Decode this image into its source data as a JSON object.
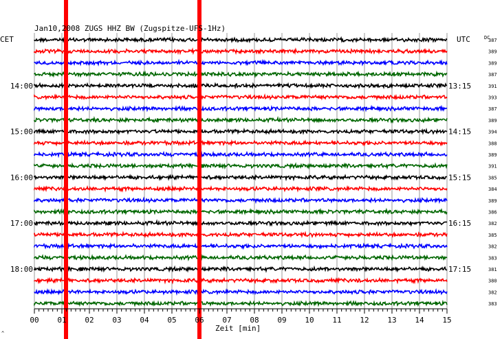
{
  "chart_data": {
    "type": "line",
    "title": "Jan10,2008   ZUGS HHZ BW (Zugspitze-UFS-1Hz)",
    "left_axis_title": "CET",
    "right_axis_title": "UTC",
    "dc_label": "DC",
    "xlabel": "Zeit [min]",
    "xlim": [
      0,
      15
    ],
    "x_tick_labels": [
      "00",
      "01",
      "02",
      "03",
      "04",
      "05",
      "06",
      "07",
      "08",
      "09",
      "10",
      "11",
      "12",
      "13",
      "14",
      "15"
    ],
    "trace_colors": [
      "#000000",
      "#ff0000",
      "#0000ff",
      "#006600"
    ],
    "highlight_color": "#ff0000",
    "grid": "vertical-minute-lines",
    "left_time_labels": [
      {
        "row": 4,
        "text": "14:00"
      },
      {
        "row": 8,
        "text": "15:00"
      },
      {
        "row": 12,
        "text": "16:00"
      },
      {
        "row": 16,
        "text": "17:00"
      },
      {
        "row": 20,
        "text": "18:00"
      }
    ],
    "right_time_labels": [
      {
        "row": 4,
        "text": "13:15"
      },
      {
        "row": 8,
        "text": "14:15"
      },
      {
        "row": 12,
        "text": "15:15"
      },
      {
        "row": 16,
        "text": "16:15"
      },
      {
        "row": 20,
        "text": "17:15"
      }
    ],
    "dc_values": [
      "387",
      "389",
      "389",
      "387",
      "391",
      "393",
      "387",
      "389",
      "394",
      "388",
      "389",
      "391",
      "385",
      "384",
      "389",
      "386",
      "382",
      "385",
      "382",
      "383",
      "381",
      "380",
      "382",
      "383"
    ],
    "vertical_markers_minutes": [
      1.15,
      6.0
    ],
    "footnote": "^"
  }
}
